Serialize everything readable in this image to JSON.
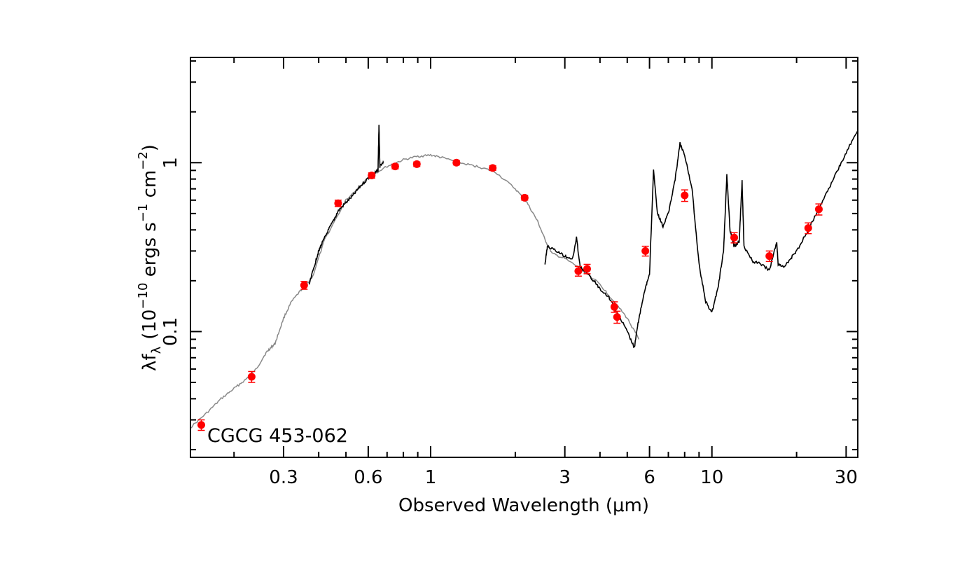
{
  "chart_data": {
    "type": "line",
    "annotation": "CGCG 453-062",
    "xlabel": "Observed Wavelength (μm)",
    "ylabel": "λf",
    "ylabel_sub": "λ",
    "ylabel_units_base": "(10",
    "ylabel_units_exp": "−10",
    "ylabel_units_mid": " ergs s",
    "ylabel_units_exp2": "−1",
    "ylabel_units_mid2": " cm",
    "ylabel_units_exp3": "−2",
    "ylabel_units_end": ")",
    "xscale": "log",
    "yscale": "log",
    "xlim": [
      0.14,
      33
    ],
    "ylim": [
      0.018,
      4.2
    ],
    "x_tick_labels": [
      "0.3",
      "0.6",
      "1",
      "3",
      "6",
      "10",
      "30"
    ],
    "x_tick_values": [
      0.3,
      0.6,
      1,
      3,
      6,
      10,
      30
    ],
    "y_tick_labels": [
      "0.1",
      "1"
    ],
    "y_tick_values": [
      0.1,
      1
    ],
    "colors": {
      "model": "#888888",
      "spectrum": "#000000",
      "photometry": "#ff0000"
    },
    "series": [
      {
        "kind": "model",
        "points": [
          [
            0.14,
            0.027
          ],
          [
            0.16,
            0.033
          ],
          [
            0.18,
            0.04
          ],
          [
            0.2,
            0.046
          ],
          [
            0.22,
            0.052
          ],
          [
            0.24,
            0.06
          ],
          [
            0.26,
            0.075
          ],
          [
            0.27,
            0.08
          ],
          [
            0.28,
            0.085
          ],
          [
            0.3,
            0.12
          ],
          [
            0.32,
            0.15
          ],
          [
            0.35,
            0.18
          ],
          [
            0.38,
            0.21
          ],
          [
            0.42,
            0.35
          ],
          [
            0.5,
            0.6
          ],
          [
            0.6,
            0.82
          ],
          [
            0.7,
            0.95
          ],
          [
            0.8,
            1.04
          ],
          [
            0.9,
            1.09
          ],
          [
            1.0,
            1.11
          ],
          [
            1.1,
            1.07
          ],
          [
            1.3,
            0.99
          ],
          [
            1.5,
            0.94
          ],
          [
            1.7,
            0.88
          ],
          [
            2.0,
            0.7
          ],
          [
            2.2,
            0.58
          ],
          [
            2.4,
            0.45
          ],
          [
            2.55,
            0.35
          ],
          [
            2.7,
            0.29
          ],
          [
            3.0,
            0.27
          ],
          [
            3.5,
            0.23
          ],
          [
            4.0,
            0.19
          ],
          [
            4.5,
            0.15
          ],
          [
            5.0,
            0.12
          ],
          [
            5.5,
            0.09
          ]
        ]
      },
      {
        "kind": "spectrum-optical",
        "points": [
          [
            0.37,
            0.19
          ],
          [
            0.39,
            0.26
          ],
          [
            0.4,
            0.3
          ],
          [
            0.41,
            0.33
          ],
          [
            0.43,
            0.39
          ],
          [
            0.45,
            0.45
          ],
          [
            0.47,
            0.52
          ],
          [
            0.5,
            0.58
          ],
          [
            0.53,
            0.64
          ],
          [
            0.56,
            0.72
          ],
          [
            0.6,
            0.81
          ],
          [
            0.63,
            0.86
          ],
          [
            0.65,
            0.9
          ],
          [
            0.655,
            1.65
          ],
          [
            0.66,
            0.95
          ],
          [
            0.68,
            1.0
          ]
        ]
      },
      {
        "kind": "spectrum-ir",
        "points": [
          [
            2.55,
            0.25
          ],
          [
            2.6,
            0.32
          ],
          [
            2.8,
            0.3
          ],
          [
            3.0,
            0.28
          ],
          [
            3.2,
            0.27
          ],
          [
            3.3,
            0.36
          ],
          [
            3.4,
            0.24
          ],
          [
            3.6,
            0.22
          ],
          [
            3.8,
            0.2
          ],
          [
            4.0,
            0.18
          ],
          [
            4.3,
            0.16
          ],
          [
            4.6,
            0.13
          ],
          [
            5.0,
            0.1
          ],
          [
            5.3,
            0.08
          ],
          [
            5.5,
            0.12
          ],
          [
            5.8,
            0.18
          ],
          [
            6.0,
            0.22
          ],
          [
            6.2,
            0.9
          ],
          [
            6.4,
            0.5
          ],
          [
            6.7,
            0.42
          ],
          [
            7.0,
            0.5
          ],
          [
            7.4,
            0.8
          ],
          [
            7.7,
            1.3
          ],
          [
            8.0,
            1.1
          ],
          [
            8.5,
            0.7
          ],
          [
            9.0,
            0.25
          ],
          [
            9.5,
            0.15
          ],
          [
            10.0,
            0.13
          ],
          [
            10.5,
            0.18
          ],
          [
            11.0,
            0.3
          ],
          [
            11.3,
            0.85
          ],
          [
            11.6,
            0.4
          ],
          [
            12.0,
            0.32
          ],
          [
            12.5,
            0.34
          ],
          [
            12.8,
            0.78
          ],
          [
            13.0,
            0.32
          ],
          [
            14.0,
            0.26
          ],
          [
            15.0,
            0.25
          ],
          [
            16.0,
            0.23
          ],
          [
            17.0,
            0.34
          ],
          [
            17.2,
            0.25
          ],
          [
            18.0,
            0.24
          ],
          [
            19.0,
            0.27
          ],
          [
            20.0,
            0.3
          ],
          [
            22.0,
            0.4
          ],
          [
            24.0,
            0.54
          ],
          [
            26.0,
            0.7
          ],
          [
            28.0,
            0.9
          ],
          [
            30.0,
            1.15
          ],
          [
            33.0,
            1.55
          ]
        ]
      }
    ],
    "photometry": [
      {
        "x": 0.153,
        "y": 0.028,
        "err": 0.002
      },
      {
        "x": 0.231,
        "y": 0.054,
        "err": 0.004
      },
      {
        "x": 0.355,
        "y": 0.188,
        "err": 0.01
      },
      {
        "x": 0.469,
        "y": 0.575,
        "err": 0.025
      },
      {
        "x": 0.617,
        "y": 0.84,
        "err": 0.03
      },
      {
        "x": 0.748,
        "y": 0.95,
        "err": 0.03
      },
      {
        "x": 0.893,
        "y": 0.98,
        "err": 0.03
      },
      {
        "x": 1.235,
        "y": 1.0,
        "err": 0.03
      },
      {
        "x": 1.662,
        "y": 0.93,
        "err": 0.03
      },
      {
        "x": 2.159,
        "y": 0.62,
        "err": 0.02
      },
      {
        "x": 3.35,
        "y": 0.228,
        "err": 0.015
      },
      {
        "x": 3.6,
        "y": 0.235,
        "err": 0.015
      },
      {
        "x": 4.5,
        "y": 0.14,
        "err": 0.01
      },
      {
        "x": 4.6,
        "y": 0.122,
        "err": 0.01
      },
      {
        "x": 5.8,
        "y": 0.3,
        "err": 0.02
      },
      {
        "x": 8.0,
        "y": 0.64,
        "err": 0.05
      },
      {
        "x": 12.0,
        "y": 0.36,
        "err": 0.025
      },
      {
        "x": 16.0,
        "y": 0.28,
        "err": 0.02
      },
      {
        "x": 22.0,
        "y": 0.41,
        "err": 0.03
      },
      {
        "x": 24.0,
        "y": 0.53,
        "err": 0.04
      }
    ]
  }
}
